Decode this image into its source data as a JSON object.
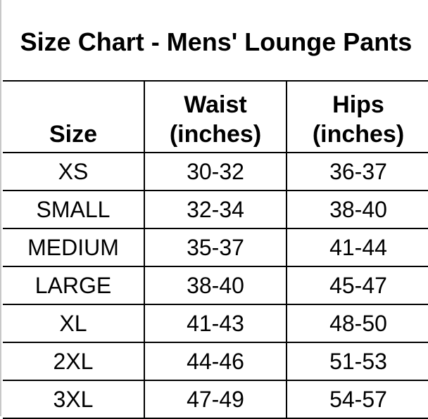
{
  "title": "Size Chart - Mens' Lounge Pants",
  "headers": [
    "Size",
    "Waist (inches)",
    "Hips (inches)"
  ],
  "rows": [
    [
      "XS",
      "30-32",
      "36-37"
    ],
    [
      "SMALL",
      "32-34",
      "38-40"
    ],
    [
      "MEDIUM",
      "35-37",
      "41-44"
    ],
    [
      "LARGE",
      "38-40",
      "45-47"
    ],
    [
      "XL",
      "41-43",
      "48-50"
    ],
    [
      "2XL",
      "44-46",
      "51-53"
    ],
    [
      "3XL",
      "47-49",
      "54-57"
    ]
  ]
}
